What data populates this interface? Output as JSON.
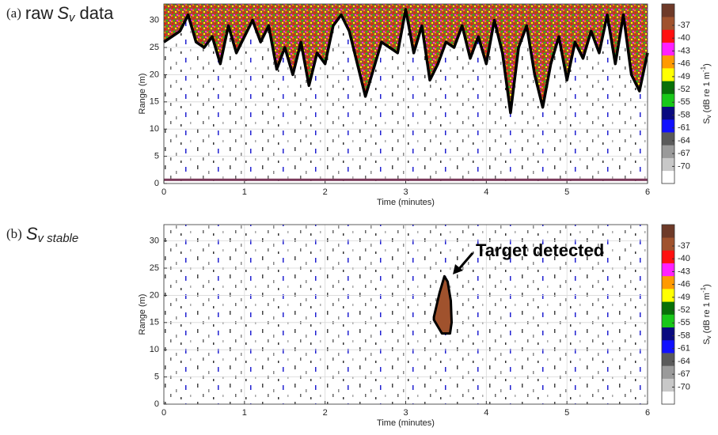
{
  "chart_data": [
    {
      "type": "echogram",
      "label": "(a)",
      "title": "raw",
      "title_symbol": "S",
      "title_subscript": "v",
      "title_suffix": "data",
      "xlabel": "Time (minutes)",
      "ylabel": "Range (m)",
      "xlim": [
        0,
        6
      ],
      "xticks": [
        0,
        1,
        2,
        3,
        4,
        5,
        6
      ],
      "ylim": [
        0,
        33
      ],
      "yticks": [
        0,
        5,
        10,
        15,
        20,
        25,
        30
      ],
      "grid": true,
      "series": [
        {
          "color": "#000000",
          "x": [
            0,
            0.1,
            0.2,
            0.3,
            0.4,
            0.5,
            0.6,
            0.7,
            0.8,
            0.9,
            1,
            1.1,
            1.2,
            1.3,
            1.4,
            1.5,
            1.6,
            1.7,
            1.8,
            1.9,
            2,
            2.1,
            2.2,
            2.3,
            2.4,
            2.5,
            2.6,
            2.7,
            2.8,
            2.9,
            3,
            3.1,
            3.2,
            3.3,
            3.4,
            3.5,
            3.6,
            3.7,
            3.8,
            3.9,
            4,
            4.1,
            4.2,
            4.3,
            4.4,
            4.5,
            4.6,
            4.7,
            4.8,
            4.9,
            5,
            5.1,
            5.2,
            5.3,
            5.4,
            5.5,
            5.6,
            5.7,
            5.8,
            5.9,
            6
          ],
          "values": [
            26,
            27,
            28,
            31,
            26,
            25,
            27,
            22,
            29,
            24,
            27,
            30,
            26,
            29,
            21,
            25,
            20,
            26,
            18,
            24,
            22,
            29,
            31,
            28,
            22,
            16,
            21,
            26,
            25,
            24,
            32,
            24,
            29,
            19,
            22,
            26,
            25,
            29,
            23,
            27,
            22,
            30,
            24,
            13,
            25,
            29,
            20,
            14,
            22,
            27,
            19,
            26,
            23,
            28,
            24,
            31,
            22,
            31,
            20,
            17,
            24
          ]
        }
      ],
      "colorbar": {
        "label": [
          "S",
          "v",
          " (dB re 1 m",
          "-1",
          ")"
        ],
        "clim": [
          -74,
          -32
        ],
        "colors": [
          "#ffffff",
          "#c8c8c8",
          "#9a9a9a",
          "#5a5a5a",
          "#1010ff",
          "#0a0a80",
          "#18c818",
          "#087008",
          "#ffff00",
          "#ff9a00",
          "#ff20ff",
          "#ff1010",
          "#a0522d",
          "#6e3a28"
        ],
        "ticks": [
          -70,
          -67,
          -64,
          -61,
          -58,
          -55,
          -52,
          -49,
          -46,
          -43,
          -40,
          -37
        ]
      }
    },
    {
      "type": "echogram",
      "label": "(b)",
      "title_symbol": "S",
      "title_subscript": "v stable",
      "xlabel": "Time (minutes)",
      "ylabel": "Range (m)",
      "xlim": [
        0,
        6
      ],
      "xticks": [
        0,
        1,
        2,
        3,
        4,
        5,
        6
      ],
      "ylim": [
        0,
        33
      ],
      "yticks": [
        0,
        5,
        10,
        15,
        20,
        25,
        30
      ],
      "grid": true,
      "annotation": "Target detected",
      "series": [
        {
          "color": "#000000",
          "x": [
            3.35,
            3.42,
            3.48,
            3.52,
            3.56,
            3.57,
            3.55,
            3.45,
            3.35
          ],
          "values": [
            16,
            20.5,
            23.5,
            22.5,
            19,
            15,
            13,
            13,
            15.5
          ]
        }
      ],
      "colorbar": {
        "label": [
          "S",
          "v",
          " (dB re 1 m",
          "-1",
          ")"
        ],
        "clim": [
          -74,
          -32
        ],
        "colors": [
          "#ffffff",
          "#c8c8c8",
          "#9a9a9a",
          "#5a5a5a",
          "#1010ff",
          "#0a0a80",
          "#18c818",
          "#087008",
          "#ffff00",
          "#ff9a00",
          "#ff20ff",
          "#ff1010",
          "#a0522d",
          "#6e3a28"
        ],
        "ticks": [
          -70,
          -67,
          -64,
          -61,
          -58,
          -55,
          -52,
          -49,
          -46,
          -43,
          -40,
          -37
        ]
      }
    }
  ]
}
